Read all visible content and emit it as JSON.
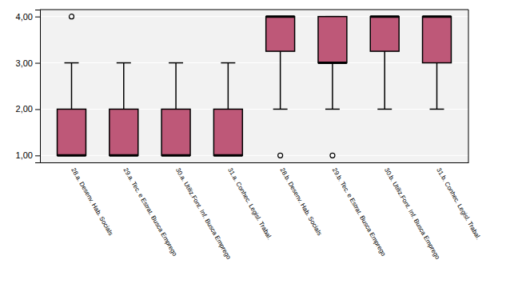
{
  "chart_data": {
    "type": "box",
    "categories": [
      "28.a. Desenv. Hab. Socials",
      "29.a. Tec. e Estrat. Busca Emprego",
      "30.a. Utiliz.Font. Inf. Busca Emprego",
      "31.a. Conhec. Legisl. Trabal.",
      "28.b. Desenv. Hab. Socials",
      "29.b. Tec. e Estrat. Busca Emprego",
      "30.b. Utiliz.Font. Inf. Busca Emprego",
      "31.b. Conhec. Legisl. Trabal."
    ],
    "q1": [
      1.0,
      1.0,
      1.0,
      1.0,
      3.25,
      3.0,
      3.25,
      3.0
    ],
    "median": [
      1.0,
      1.0,
      1.0,
      1.0,
      4.0,
      3.0,
      4.0,
      4.0
    ],
    "q3": [
      2.0,
      2.0,
      2.0,
      2.0,
      4.0,
      4.0,
      4.0,
      4.0
    ],
    "whislo": [
      1.0,
      1.0,
      1.0,
      1.0,
      2.0,
      2.0,
      2.0,
      2.0
    ],
    "whishi": [
      3.0,
      3.0,
      3.0,
      3.0,
      4.0,
      4.0,
      4.0,
      4.0
    ],
    "fliers": [
      [
        4.0
      ],
      [],
      [],
      [],
      [
        1.0
      ],
      [
        1.0
      ],
      [],
      []
    ],
    "color": "#be5878",
    "ylim": [
      0.85,
      4.15
    ],
    "yticks": [
      {
        "value": 1.0,
        "label": "1,00"
      },
      {
        "value": 2.0,
        "label": "2,00"
      },
      {
        "value": 3.0,
        "label": "3,00"
      },
      {
        "value": 4.0,
        "label": "4,00"
      }
    ],
    "grid": true
  }
}
